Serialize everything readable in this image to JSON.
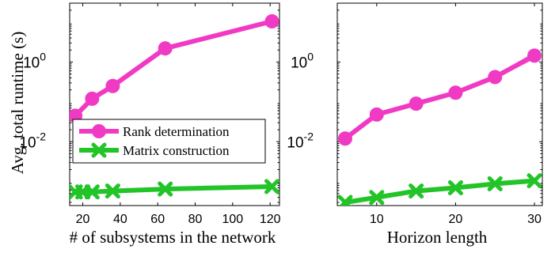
{
  "chart_data": [
    {
      "type": "line",
      "title": "",
      "xlabel": "# of subsystems in the network",
      "ylabel": "Avg. total runtime (s)",
      "yscale": "log",
      "xlim": [
        13,
        125
      ],
      "ylim": [
        0.00025,
        30
      ],
      "xticks": [
        20,
        40,
        60,
        80,
        100,
        120
      ],
      "yticks": [
        {
          "value": 0.01,
          "base": "10",
          "exp": "-2"
        },
        {
          "value": 1,
          "base": "10",
          "exp": "0"
        }
      ],
      "legend": {
        "position": "lower-left"
      },
      "series": [
        {
          "name": "Rank determination",
          "color": "#f03ac4",
          "marker": "circle",
          "x": [
            16,
            25,
            36,
            64,
            121
          ],
          "y": [
            0.045,
            0.12,
            0.25,
            2.2,
            10.5
          ]
        },
        {
          "name": "Matrix construction",
          "color": "#22c428",
          "marker": "x",
          "x": [
            16,
            20,
            25,
            36,
            64,
            121
          ],
          "y": [
            0.00055,
            0.00055,
            0.00055,
            0.00058,
            0.00065,
            0.00075
          ]
        }
      ]
    },
    {
      "type": "line",
      "title": "",
      "xlabel": "Horizon length",
      "ylabel": "",
      "yscale": "log",
      "xlim": [
        5,
        31
      ],
      "ylim": [
        0.00025,
        30
      ],
      "xticks": [
        10,
        20,
        30
      ],
      "yticks": [
        {
          "value": 0.01,
          "base": "10",
          "exp": "-2"
        },
        {
          "value": 1,
          "base": "10",
          "exp": "0"
        }
      ],
      "series": [
        {
          "name": "Rank determination",
          "color": "#f03ac4",
          "marker": "circle",
          "x": [
            6,
            10,
            15,
            20,
            25,
            30
          ],
          "y": [
            0.012,
            0.048,
            0.09,
            0.17,
            0.42,
            1.45
          ],
          "band_low": [
            0.0115,
            0.046,
            0.087,
            0.165,
            0.39,
            1.15
          ],
          "band_high": [
            0.0125,
            0.05,
            0.093,
            0.175,
            0.46,
            1.8
          ]
        },
        {
          "name": "Matrix construction",
          "color": "#22c428",
          "marker": "x",
          "x": [
            6,
            10,
            15,
            20,
            25,
            30
          ],
          "y": [
            0.0003,
            0.0004,
            0.00058,
            0.0007,
            0.00088,
            0.00105
          ]
        }
      ]
    }
  ]
}
